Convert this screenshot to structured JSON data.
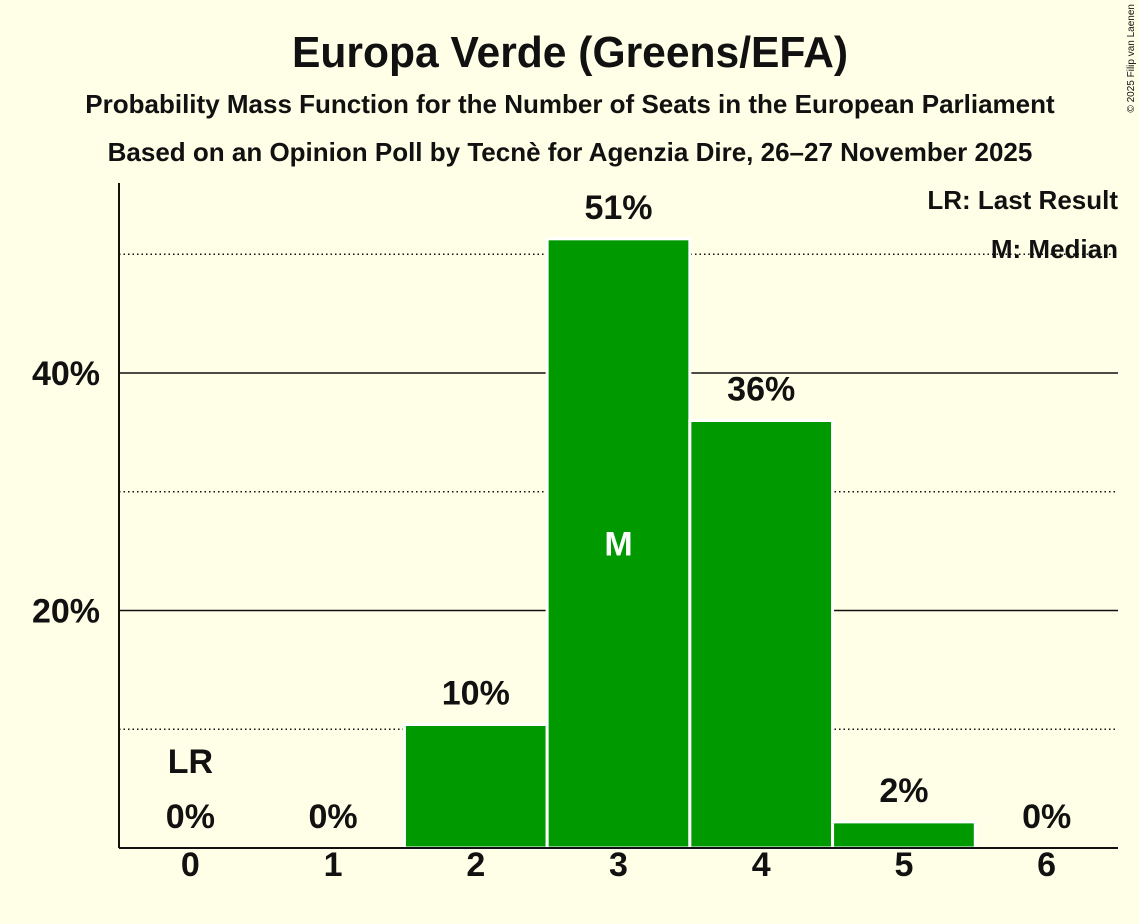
{
  "chart_data": {
    "type": "bar",
    "title": "Europa Verde (Greens/EFA)",
    "subtitle": "Probability Mass Function for the Number of Seats in the European Parliament",
    "source": "Based on an Opinion Poll by Tecnè for Agenzia Dire, 26–27 November 2025",
    "categories": [
      "0",
      "1",
      "2",
      "3",
      "4",
      "5",
      "6"
    ],
    "values": [
      0,
      0,
      10.4,
      51.3,
      36.0,
      2.2,
      0
    ],
    "value_labels": [
      "0%",
      "0%",
      "10%",
      "51%",
      "36%",
      "2%",
      "0%"
    ],
    "ylim": [
      0,
      56
    ],
    "yticks": [
      {
        "value": 20,
        "label": "20%"
      },
      {
        "value": 40,
        "label": "40%"
      }
    ],
    "minor_gridlines": [
      10,
      30,
      50
    ],
    "grid": true,
    "last_result_seats": 0,
    "median_seats": 3,
    "last_result_marker": "LR",
    "median_marker": "M",
    "legend": [
      "LR: Last Result",
      "M: Median"
    ],
    "legend_position": "top-right"
  },
  "credits": {
    "copyright": "© 2025 Filip van Laenen"
  },
  "colors": {
    "background": "#FFFEE6",
    "bar": "#009900",
    "bar_outline": "#FFFFFF",
    "text": "#111111",
    "median_marker": "#FFFFFF"
  }
}
